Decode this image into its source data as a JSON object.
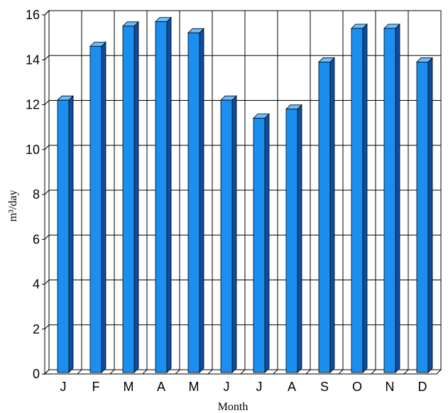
{
  "chart_data": {
    "type": "bar",
    "title": "",
    "xlabel": "Month",
    "ylabel": "m³/day",
    "categories": [
      "J",
      "F",
      "M",
      "A",
      "M",
      "J",
      "J",
      "A",
      "S",
      "O",
      "N",
      "D"
    ],
    "values": [
      12.2,
      14.6,
      15.5,
      15.7,
      15.2,
      12.2,
      11.4,
      11.8,
      13.9,
      15.4,
      15.4,
      13.9
    ],
    "ylim": [
      0,
      16
    ],
    "yticks": [
      0,
      2,
      4,
      6,
      8,
      10,
      12,
      14,
      16
    ],
    "grid": true,
    "bar_color": "#1a8ff0",
    "bar_side_color": "#0b4fa0",
    "bar_top_color": "#6cbcff",
    "legend": "none"
  }
}
